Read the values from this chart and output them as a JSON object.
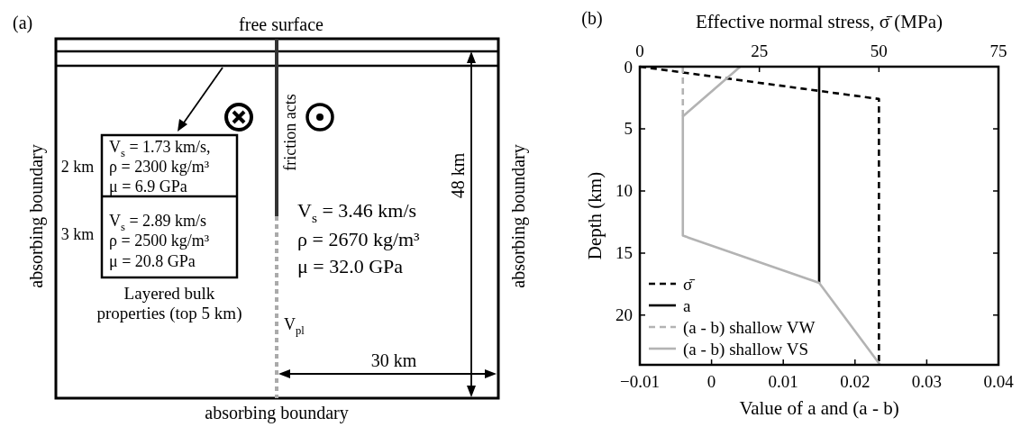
{
  "chart_data": [
    {
      "type": "other",
      "annotations": [
        "(a)",
        "free surface",
        "absorbing boundary",
        "absorbing boundary",
        "absorbing boundary",
        "friction acts",
        "2 km",
        "V$_{s}$ = 1.73 km/s,",
        "ρ = 2300 kg/m³",
        "μ = 6.9 GPa",
        "3 km",
        "V$_{s}$ = 2.89 km/s",
        "ρ = 2500 kg/m³",
        "μ = 20.8 GPa",
        "Layered bulk",
        "properties (top 5 km)",
        "V$_{pl}$",
        "V$_{s}$ = 3.46 km/s",
        "ρ = 2670 kg/m³",
        "μ = 32.0 GPa",
        "48 km",
        "30 km"
      ]
    },
    {
      "type": "line",
      "annotations": [
        "(b)"
      ],
      "xlabel": "Value of a and (a - b)",
      "ylabel": "Depth (km)",
      "x2label": "Effective normal stress, σ̄ (MPa)",
      "xlim": [
        -0.01,
        0.04
      ],
      "xticks": [
        {
          "value": -0.01,
          "label": "−0.01"
        },
        0,
        0.01,
        0.02,
        0.03,
        0.04
      ],
      "x2lim": [
        0,
        75
      ],
      "x2ticks": [
        0,
        25,
        50,
        75
      ],
      "ylim": [
        24,
        0
      ],
      "yticks": [
        0,
        5,
        10,
        15,
        20
      ],
      "legend": "bottom left",
      "series": [
        {
          "name": "σ̄",
          "color": "#000000",
          "axis": "x2",
          "line_style": "dashed",
          "x": [
            0,
            50,
            50
          ],
          "values": [
            0,
            2.6,
            24
          ]
        },
        {
          "name": "a",
          "color": "#000000",
          "line_style": "solid",
          "x": [
            0.015,
            0.015
          ],
          "values": [
            0,
            17.4
          ]
        },
        {
          "name": "(a - b) shallow VW",
          "color": "#b3b3b3",
          "line_style": "dashed",
          "x": [
            -0.004,
            -0.004
          ],
          "values": [
            0,
            4
          ]
        },
        {
          "name": "(a - b) shallow VS",
          "color": "#b3b3b3",
          "line_style": "solid",
          "x": [
            0.004,
            -0.004,
            -0.004,
            0.015,
            0.0235
          ],
          "values": [
            0,
            4,
            13.6,
            17.4,
            24
          ]
        }
      ]
    }
  ]
}
